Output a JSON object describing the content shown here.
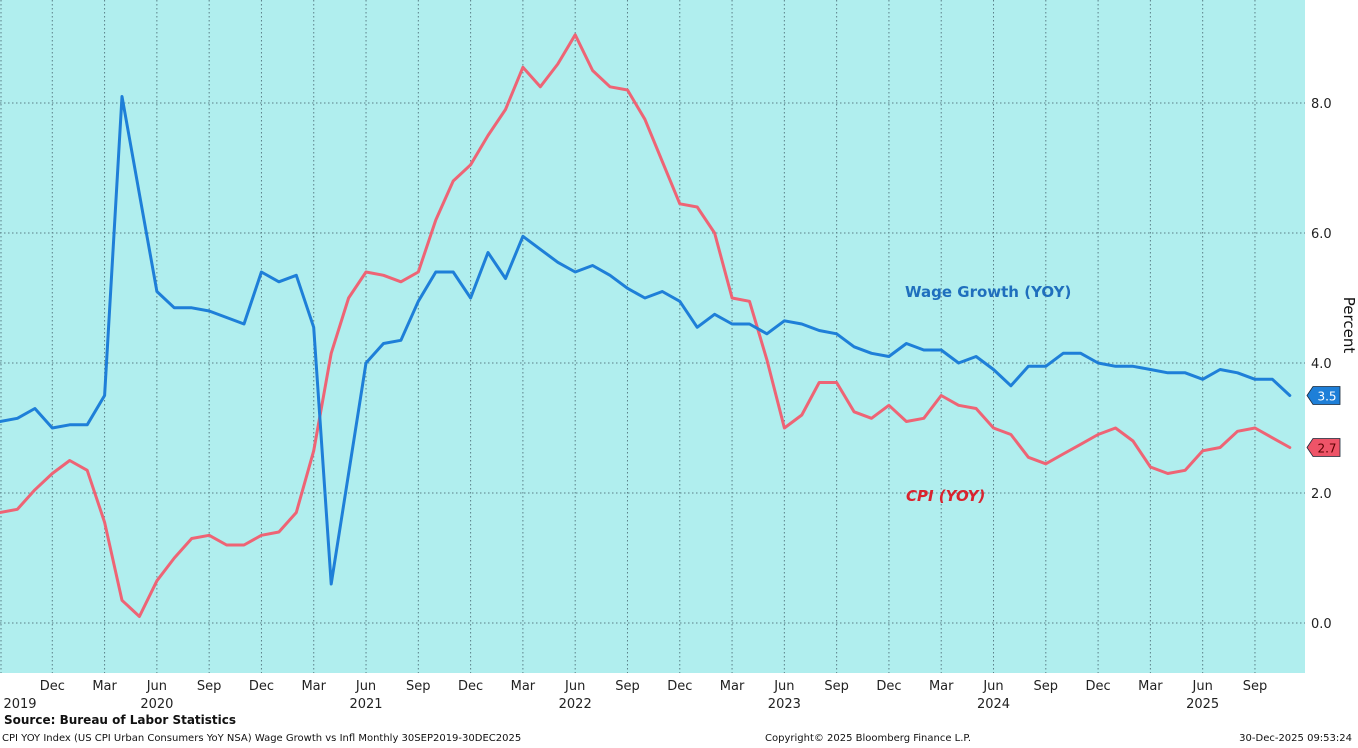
{
  "chart_data": {
    "type": "line",
    "title": "Wage Growth vs Infl",
    "xlabel": "",
    "ylabel": "Percent",
    "ylim": [
      -0.8,
      9.6
    ],
    "yticks": [
      "0.0",
      "2.0",
      "4.0",
      "6.0",
      "8.0"
    ],
    "grid": true,
    "x_start": "Sep 2019",
    "x_months": [
      "Sep-19",
      "Oct-19",
      "Nov-19",
      "Dec-19",
      "Jan-20",
      "Feb-20",
      "Mar-20",
      "Apr-20",
      "May-20",
      "Jun-20",
      "Jul-20",
      "Aug-20",
      "Sep-20",
      "Oct-20",
      "Nov-20",
      "Dec-20",
      "Jan-21",
      "Feb-21",
      "Mar-21",
      "Apr-21",
      "May-21",
      "Jun-21",
      "Jul-21",
      "Aug-21",
      "Sep-21",
      "Oct-21",
      "Nov-21",
      "Dec-21",
      "Jan-22",
      "Feb-22",
      "Mar-22",
      "Apr-22",
      "May-22",
      "Jun-22",
      "Jul-22",
      "Aug-22",
      "Sep-22",
      "Oct-22",
      "Nov-22",
      "Dec-22",
      "Jan-23",
      "Feb-23",
      "Mar-23",
      "Apr-23",
      "May-23",
      "Jun-23",
      "Jul-23",
      "Aug-23",
      "Sep-23",
      "Oct-23",
      "Nov-23",
      "Dec-23",
      "Jan-24",
      "Feb-24",
      "Mar-24",
      "Apr-24",
      "May-24",
      "Jun-24",
      "Jul-24",
      "Aug-24",
      "Sep-24",
      "Oct-24",
      "Nov-24",
      "Dec-24",
      "Jan-25",
      "Feb-25",
      "Mar-25",
      "Apr-25",
      "May-25",
      "Jun-25",
      "Jul-25",
      "Aug-25",
      "Sep-25",
      "Oct-25",
      "Nov-25"
    ],
    "x_tick_labels": [
      {
        "month_index": 3,
        "label": "Dec",
        "year": "2019"
      },
      {
        "month_index": 6,
        "label": "Mar",
        "year": ""
      },
      {
        "month_index": 9,
        "label": "Jun",
        "year": "2020"
      },
      {
        "month_index": 12,
        "label": "Sep",
        "year": ""
      },
      {
        "month_index": 15,
        "label": "Dec",
        "year": ""
      },
      {
        "month_index": 18,
        "label": "Mar",
        "year": ""
      },
      {
        "month_index": 21,
        "label": "Jun",
        "year": "2021"
      },
      {
        "month_index": 24,
        "label": "Sep",
        "year": ""
      },
      {
        "month_index": 27,
        "label": "Dec",
        "year": ""
      },
      {
        "month_index": 30,
        "label": "Mar",
        "year": ""
      },
      {
        "month_index": 33,
        "label": "Jun",
        "year": "2022"
      },
      {
        "month_index": 36,
        "label": "Sep",
        "year": ""
      },
      {
        "month_index": 39,
        "label": "Dec",
        "year": ""
      },
      {
        "month_index": 42,
        "label": "Mar",
        "year": ""
      },
      {
        "month_index": 45,
        "label": "Jun",
        "year": "2023"
      },
      {
        "month_index": 48,
        "label": "Sep",
        "year": ""
      },
      {
        "month_index": 51,
        "label": "Dec",
        "year": ""
      },
      {
        "month_index": 54,
        "label": "Mar",
        "year": ""
      },
      {
        "month_index": 57,
        "label": "Jun",
        "year": "2024"
      },
      {
        "month_index": 60,
        "label": "Sep",
        "year": ""
      },
      {
        "month_index": 63,
        "label": "Dec",
        "year": ""
      },
      {
        "month_index": 66,
        "label": "Mar",
        "year": ""
      },
      {
        "month_index": 69,
        "label": "Jun",
        "year": "2025"
      },
      {
        "month_index": 72,
        "label": "Sep",
        "year": ""
      }
    ],
    "first_year_label": "2019",
    "series": [
      {
        "name": "Wage Growth (YOY)",
        "color": "#1e7fd8",
        "label_color": "#1f6fbd",
        "last_value_label": "3.5",
        "values": [
          3.1,
          3.15,
          3.3,
          3.0,
          3.05,
          3.05,
          3.5,
          8.1,
          6.6,
          5.1,
          4.85,
          4.85,
          4.8,
          4.7,
          4.6,
          5.4,
          5.25,
          5.35,
          4.55,
          0.6,
          2.3,
          4.0,
          4.3,
          4.35,
          4.95,
          5.4,
          5.4,
          5.0,
          5.7,
          5.3,
          5.95,
          5.75,
          5.55,
          5.4,
          5.5,
          5.35,
          5.15,
          5.0,
          5.1,
          4.95,
          4.55,
          4.75,
          4.6,
          4.6,
          4.45,
          4.65,
          4.6,
          4.5,
          4.45,
          4.25,
          4.15,
          4.1,
          4.3,
          4.2,
          4.2,
          4.0,
          4.1,
          3.9,
          3.65,
          3.95,
          3.95,
          4.15,
          4.15,
          4.0,
          3.95,
          3.95,
          3.9,
          3.85,
          3.85,
          3.75,
          3.9,
          3.85,
          3.75,
          3.75,
          3.5
        ]
      },
      {
        "name": "CPI (YOY)",
        "color": "#ee6475",
        "label_color": "#d9232e",
        "last_value_label": "2.7",
        "values": [
          1.7,
          1.75,
          2.05,
          2.3,
          2.5,
          2.35,
          1.55,
          0.35,
          0.1,
          0.65,
          1.0,
          1.3,
          1.35,
          1.2,
          1.2,
          1.35,
          1.4,
          1.7,
          2.65,
          4.15,
          5.0,
          5.4,
          5.35,
          5.25,
          5.4,
          6.2,
          6.8,
          7.05,
          7.5,
          7.9,
          8.55,
          8.25,
          8.6,
          9.05,
          8.5,
          8.25,
          8.2,
          7.75,
          7.1,
          6.45,
          6.4,
          6.0,
          5.0,
          4.95,
          4.05,
          3.0,
          3.2,
          3.7,
          3.7,
          3.25,
          3.15,
          3.35,
          3.1,
          3.15,
          3.5,
          3.35,
          3.3,
          3.0,
          2.9,
          2.55,
          2.45,
          2.6,
          2.75,
          2.9,
          3.0,
          2.8,
          2.4,
          2.3,
          2.35,
          2.65,
          2.7,
          2.95,
          3.0,
          2.85,
          2.7
        ]
      }
    ],
    "annotations": [
      {
        "text": "Wage Growth (YOY)",
        "series": "Wage Growth (YOY)"
      },
      {
        "text": "CPI (YOY)",
        "series": "CPI (YOY)"
      }
    ],
    "colors": {
      "plot_background": "#b0eeee",
      "grid": "#5a7f87"
    }
  },
  "footer": {
    "source": "Source: Bureau of Labor Statistics",
    "description": "CPI YOY Index (US CPI Urban Consumers YoY NSA) Wage Growth vs Infl Monthly 30SEP2019-30DEC2025",
    "copyright": "Copyright© 2025 Bloomberg Finance L.P.",
    "timestamp": "30-Dec-2025 09:53:24"
  }
}
